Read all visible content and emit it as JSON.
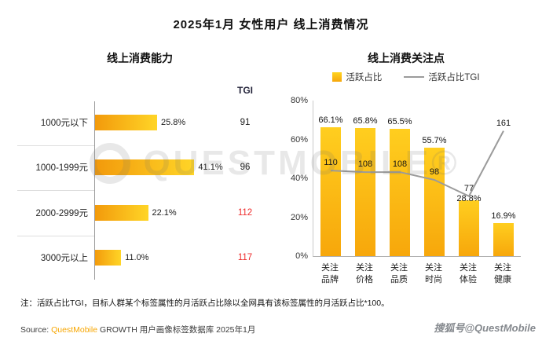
{
  "title": "2025年1月 女性用户 线上消费情况",
  "colors": {
    "bar_gradient_start": "#F2990B",
    "bar_gradient_end": "#FFD527",
    "tgi_highlight": "#EE2C2C",
    "line": "#9B9B9B",
    "brand_orange": "#F7A600"
  },
  "left_chart": {
    "title": "线上消费能力",
    "tgi_header": "TGI"
  },
  "right_chart": {
    "title": "线上消费关注点",
    "legend": [
      {
        "label": "活跃占比",
        "type": "bar"
      },
      {
        "label": "活跃占比TGI",
        "type": "line"
      }
    ],
    "y_ticks": [
      "80%",
      "60%",
      "40%",
      "20%",
      "0%"
    ]
  },
  "chart_data": [
    {
      "type": "bar",
      "orientation": "horizontal",
      "title": "线上消费能力",
      "categories": [
        "1000元以下",
        "1000-1999元",
        "2000-2999元",
        "3000元以上"
      ],
      "series": [
        {
          "name": "线上消费能力占比",
          "values": [
            25.8,
            41.1,
            22.1,
            11.0
          ],
          "labels": [
            "25.8%",
            "41.1%",
            "22.1%",
            "11.0%"
          ]
        },
        {
          "name": "TGI",
          "values": [
            91,
            96,
            112,
            117
          ],
          "highlight": [
            false,
            false,
            true,
            true
          ]
        }
      ],
      "xlim": [
        0,
        45
      ]
    },
    {
      "type": "bar",
      "title": "线上消费关注点",
      "categories": [
        "关注品牌",
        "关注价格",
        "关注品质",
        "关注时尚",
        "关注体验",
        "关注健康"
      ],
      "series": [
        {
          "name": "活跃占比",
          "type": "bar",
          "values": [
            66.1,
            65.8,
            65.5,
            55.7,
            28.8,
            16.9
          ],
          "labels": [
            "66.1%",
            "65.8%",
            "65.5%",
            "55.7%",
            "28.8%",
            "16.9%"
          ]
        },
        {
          "name": "活跃占比TGI",
          "type": "line",
          "values": [
            110,
            108,
            108,
            98,
            77,
            161
          ]
        }
      ],
      "ylim": [
        0,
        80
      ],
      "y2lim": [
        0,
        200
      ],
      "legend_position": "top"
    }
  ],
  "footer": {
    "note": "注：活跃占比TGI，目标人群某个标签属性的月活跃占比除以全网具有该标签属性的月活跃占比*100。",
    "source_prefix": "Source: ",
    "source_brand": "QuestMobile",
    "source_rest": " GROWTH 用户画像标签数据库 2025年1月"
  },
  "watermark": {
    "center_text": "QUESTMOBILE®",
    "bottom_right": "搜狐号@QuestMobile"
  }
}
